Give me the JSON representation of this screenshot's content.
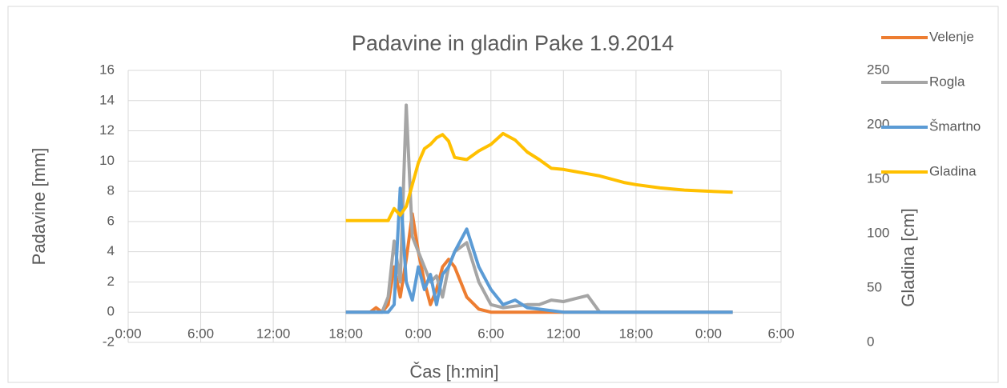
{
  "chart_data": {
    "type": "line",
    "title": "Padavine in gladin Pake 1.9.2014",
    "x_label": "Čas [h:min]",
    "y_label": "Padavine [mm]",
    "y2_label": "Gladina [cm]",
    "x": [
      18,
      19,
      20,
      20.5,
      21,
      21.5,
      22,
      22.5,
      23,
      23.5,
      24,
      24.5,
      25,
      25.5,
      26,
      26.5,
      27,
      28,
      29,
      30,
      31,
      32,
      33,
      34,
      35,
      36,
      37,
      38,
      39,
      40,
      41,
      42,
      44,
      46,
      48,
      50
    ],
    "series": [
      {
        "name": "Velenje",
        "color": "#ed7d31",
        "values": [
          0,
          0,
          0,
          0.3,
          0,
          0.5,
          3,
          1,
          3.5,
          6.5,
          4,
          2,
          0.5,
          1.5,
          3,
          3.5,
          3,
          1,
          0.2,
          0,
          0,
          0,
          0,
          0,
          0,
          0,
          0,
          0,
          0,
          0,
          0,
          0,
          0,
          0,
          0,
          0
        ]
      },
      {
        "name": "Rogla",
        "color": "#a5a5a5",
        "values": [
          0,
          0,
          0,
          0,
          0,
          1,
          4.7,
          2,
          13.7,
          5,
          4,
          3,
          2,
          2.4,
          1,
          3,
          4,
          4.6,
          2,
          0.5,
          0.3,
          0.4,
          0.5,
          0.5,
          0.8,
          0.7,
          0.9,
          1.1,
          0,
          0,
          0,
          0,
          0,
          0,
          0,
          0
        ]
      },
      {
        "name": "Šmartno",
        "color": "#5b9bd5",
        "values": [
          0,
          0,
          0,
          0,
          0,
          0,
          0.5,
          8.2,
          2,
          0.8,
          3,
          1.5,
          2.5,
          0.5,
          2.5,
          3,
          4,
          5.5,
          3,
          1.5,
          0.5,
          0.8,
          0.3,
          0.2,
          0.1,
          0,
          0,
          0,
          0,
          0,
          0,
          0,
          0,
          0,
          0,
          0
        ]
      },
      {
        "name": "Gladina",
        "color": "#ffc000",
        "axis": "y2",
        "values": [
          112,
          112,
          112,
          112,
          112,
          112,
          123,
          117,
          125,
          145,
          165,
          178,
          182,
          188,
          191,
          185,
          170,
          168,
          176,
          182,
          192,
          186,
          175,
          168,
          160,
          159,
          157,
          155,
          153,
          150,
          147,
          145,
          142,
          140,
          139,
          138
        ]
      }
    ],
    "xlim": [
      0,
      54
    ],
    "xticks": [
      {
        "value": 0,
        "label": "0:00"
      },
      {
        "value": 6,
        "label": "6:00"
      },
      {
        "value": 12,
        "label": "12:00"
      },
      {
        "value": 18,
        "label": "18:00"
      },
      {
        "value": 24,
        "label": "0:00"
      },
      {
        "value": 30,
        "label": "6:00"
      },
      {
        "value": 36,
        "label": "12:00"
      },
      {
        "value": 42,
        "label": "18:00"
      },
      {
        "value": 48,
        "label": "0:00"
      },
      {
        "value": 54,
        "label": "6:00"
      }
    ],
    "ylim": [
      -2,
      16
    ],
    "yticks": [
      -2,
      0,
      2,
      4,
      6,
      8,
      10,
      12,
      14,
      16
    ],
    "y2lim": [
      0,
      250
    ],
    "y2ticks": [
      0,
      50,
      100,
      150,
      200,
      250
    ],
    "grid": true,
    "legend": "right"
  }
}
